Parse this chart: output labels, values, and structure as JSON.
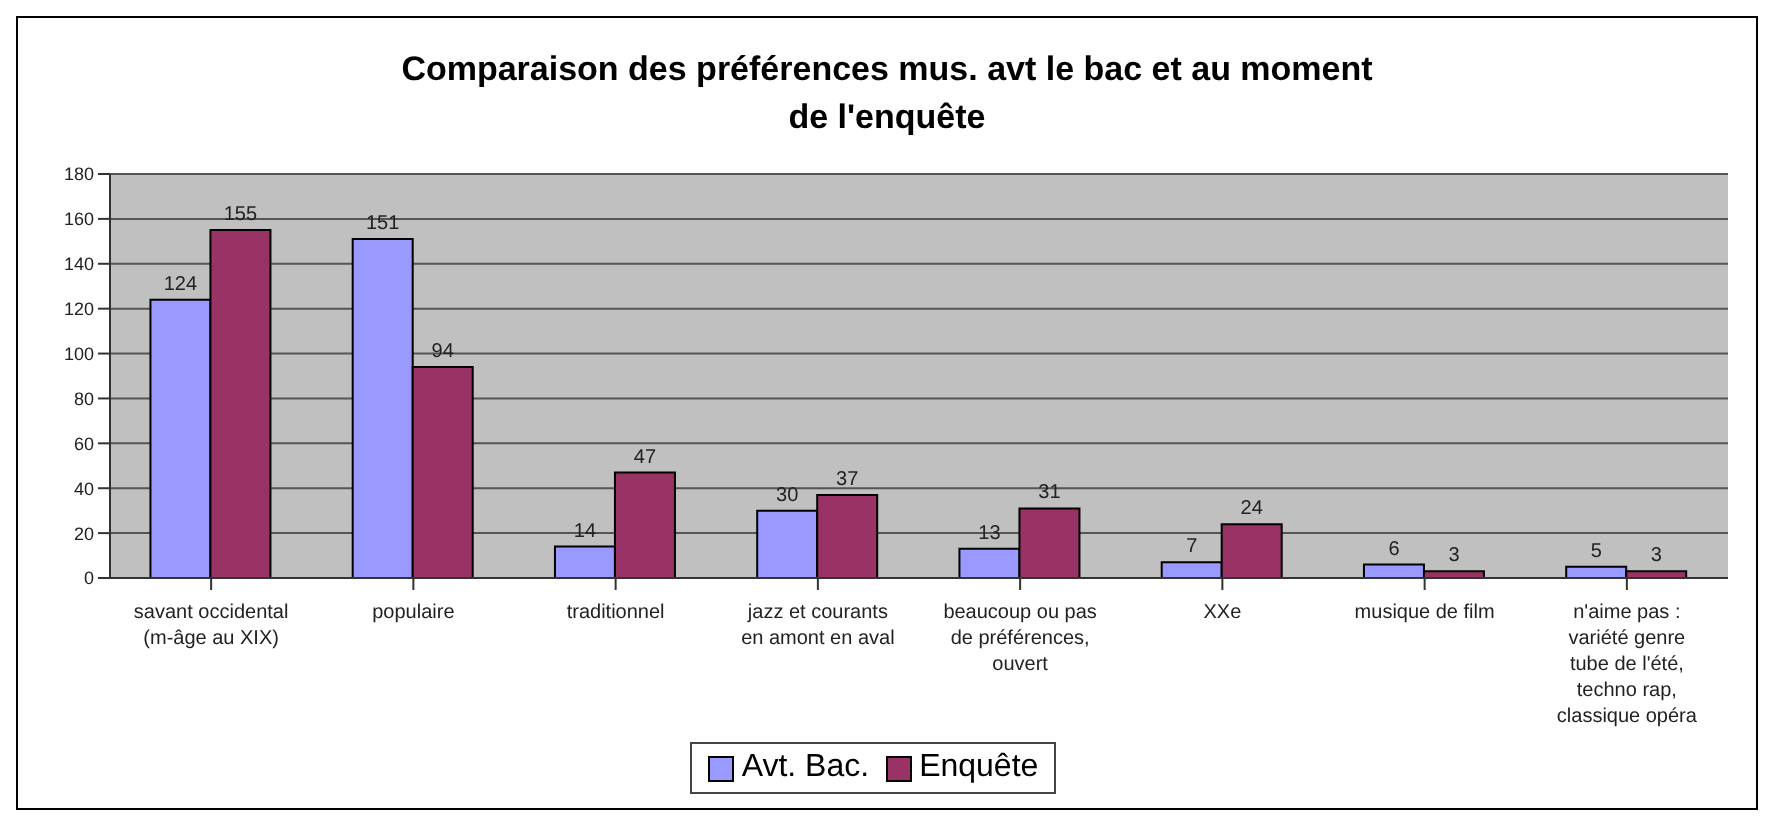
{
  "chart_data": {
    "type": "bar",
    "title": "Comparaison des préférences mus. avt le bac et au moment de l'enquête",
    "categories": [
      "savant occidental (m-âge au XIX)",
      "populaire",
      "traditionnel",
      "jazz et courants en amont en aval",
      "beaucoup ou pas de préférences, ouvert",
      "XXe",
      "musique de film",
      "n'aime pas : variété genre tube de l'été, techno rap, classique opéra"
    ],
    "series": [
      {
        "name": "Avt. Bac.",
        "color": "#9999ff",
        "values": [
          124,
          151,
          14,
          30,
          13,
          7,
          6,
          5
        ]
      },
      {
        "name": "Enquête",
        "color": "#993366",
        "values": [
          155,
          94,
          47,
          37,
          31,
          24,
          3,
          3
        ]
      }
    ],
    "ylim": [
      0,
      180
    ],
    "yticks": [
      0,
      20,
      40,
      60,
      80,
      100,
      120,
      140,
      160,
      180
    ],
    "grid": "y",
    "legend": "bottom",
    "data_labels": true
  }
}
